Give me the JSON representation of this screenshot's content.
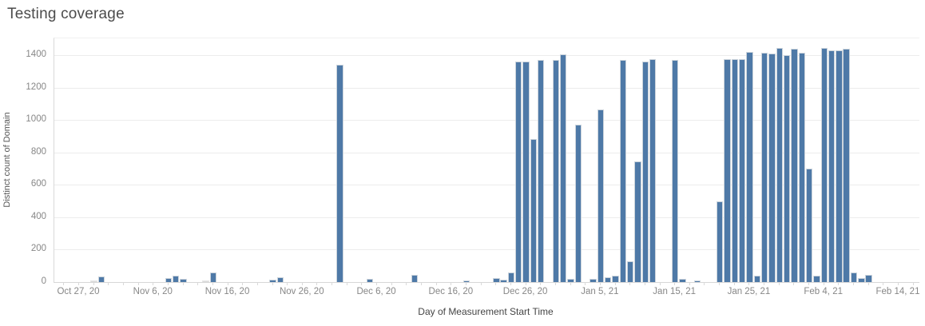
{
  "title": "Testing coverage",
  "colors": {
    "bar": "#4e79a7",
    "bar_muted": "#dcdcdc",
    "gridline": "#ececec",
    "axis_line": "#d7d7d7",
    "tick_label": "#878787",
    "axis_title": "#4a4a4a",
    "title": "#4c4c4c",
    "background": "#ffffff"
  },
  "chart_data": {
    "type": "bar",
    "title": "Testing coverage",
    "xlabel": "Day of Measurement Start Time",
    "ylabel": "Distinct count of Domain",
    "ylim": [
      0,
      1500
    ],
    "yticks": [
      0,
      200,
      400,
      600,
      800,
      1000,
      1200,
      1400
    ],
    "grid": "horizontal",
    "legend": "none",
    "x_axis": {
      "type": "date",
      "origin": "Oct 27, 20",
      "tick_interval_days": 10,
      "tick_days": [
        0,
        10,
        20,
        30,
        40,
        50,
        60,
        70,
        80,
        90,
        100,
        110
      ],
      "tick_labels": [
        "Oct 27, 20",
        "Nov 6, 20",
        "Nov 16, 20",
        "Nov 26, 20",
        "Dec 6, 20",
        "Dec 16, 20",
        "Dec 26, 20",
        "Jan 5, 21",
        "Jan 15, 21",
        "Jan 25, 21",
        "Feb 4, 21",
        "Feb 14, 21"
      ]
    },
    "points": [
      {
        "date": "Oct 29, 20",
        "day": 2,
        "value": 5,
        "muted": true
      },
      {
        "date": "Oct 30, 20",
        "day": 3,
        "value": 35
      },
      {
        "date": "Nov 8, 20",
        "day": 12,
        "value": 25
      },
      {
        "date": "Nov 9, 20",
        "day": 13,
        "value": 40
      },
      {
        "date": "Nov 10, 20",
        "day": 14,
        "value": 20
      },
      {
        "date": "Nov 13, 20",
        "day": 17,
        "value": 10,
        "muted": true
      },
      {
        "date": "Nov 14, 20",
        "day": 18,
        "value": 60
      },
      {
        "date": "Nov 22, 20",
        "day": 26,
        "value": 15
      },
      {
        "date": "Nov 23, 20",
        "day": 27,
        "value": 30
      },
      {
        "date": "Dec 1, 20",
        "day": 35,
        "value": 1340
      },
      {
        "date": "Dec 5, 20",
        "day": 39,
        "value": 20
      },
      {
        "date": "Dec 11, 20",
        "day": 45,
        "value": 45
      },
      {
        "date": "Dec 18, 20",
        "day": 52,
        "value": 10
      },
      {
        "date": "Dec 22, 20",
        "day": 56,
        "value": 25
      },
      {
        "date": "Dec 23, 20",
        "day": 57,
        "value": 15
      },
      {
        "date": "Dec 24, 20",
        "day": 58,
        "value": 60
      },
      {
        "date": "Dec 25, 20",
        "day": 59,
        "value": 1360
      },
      {
        "date": "Dec 26, 20",
        "day": 60,
        "value": 1360
      },
      {
        "date": "Dec 27, 20",
        "day": 61,
        "value": 880
      },
      {
        "date": "Dec 28, 20",
        "day": 62,
        "value": 1370
      },
      {
        "date": "Dec 30, 20",
        "day": 64,
        "value": 1370
      },
      {
        "date": "Dec 31, 20",
        "day": 65,
        "value": 1405
      },
      {
        "date": "Jan 1, 21",
        "day": 66,
        "value": 20
      },
      {
        "date": "Jan 2, 21",
        "day": 67,
        "value": 970
      },
      {
        "date": "Jan 4, 21",
        "day": 69,
        "value": 20
      },
      {
        "date": "Jan 5, 21",
        "day": 70,
        "value": 1065
      },
      {
        "date": "Jan 6, 21",
        "day": 71,
        "value": 30
      },
      {
        "date": "Jan 7, 21",
        "day": 72,
        "value": 40
      },
      {
        "date": "Jan 8, 21",
        "day": 73,
        "value": 1370
      },
      {
        "date": "Jan 9, 21",
        "day": 74,
        "value": 130
      },
      {
        "date": "Jan 10, 21",
        "day": 75,
        "value": 745
      },
      {
        "date": "Jan 11, 21",
        "day": 76,
        "value": 1360
      },
      {
        "date": "Jan 12, 21",
        "day": 77,
        "value": 1375
      },
      {
        "date": "Jan 15, 21",
        "day": 80,
        "value": 1370
      },
      {
        "date": "Jan 16, 21",
        "day": 81,
        "value": 20
      },
      {
        "date": "Jan 18, 21",
        "day": 83,
        "value": 10
      },
      {
        "date": "Jan 21, 21",
        "day": 86,
        "value": 500
      },
      {
        "date": "Jan 22, 21",
        "day": 87,
        "value": 1375
      },
      {
        "date": "Jan 23, 21",
        "day": 88,
        "value": 1375
      },
      {
        "date": "Jan 24, 21",
        "day": 89,
        "value": 1375
      },
      {
        "date": "Jan 25, 21",
        "day": 90,
        "value": 1420
      },
      {
        "date": "Jan 26, 21",
        "day": 91,
        "value": 40
      },
      {
        "date": "Jan 27, 21",
        "day": 92,
        "value": 1415
      },
      {
        "date": "Jan 28, 21",
        "day": 93,
        "value": 1410
      },
      {
        "date": "Jan 29, 21",
        "day": 94,
        "value": 1445
      },
      {
        "date": "Jan 30, 21",
        "day": 95,
        "value": 1400
      },
      {
        "date": "Jan 31, 21",
        "day": 96,
        "value": 1440
      },
      {
        "date": "Feb 1, 21",
        "day": 97,
        "value": 1415
      },
      {
        "date": "Feb 2, 21",
        "day": 98,
        "value": 700
      },
      {
        "date": "Feb 3, 21",
        "day": 99,
        "value": 40
      },
      {
        "date": "Feb 4, 21",
        "day": 100,
        "value": 1445
      },
      {
        "date": "Feb 5, 21",
        "day": 101,
        "value": 1430
      },
      {
        "date": "Feb 6, 21",
        "day": 102,
        "value": 1430
      },
      {
        "date": "Feb 7, 21",
        "day": 103,
        "value": 1440
      },
      {
        "date": "Feb 8, 21",
        "day": 104,
        "value": 60
      },
      {
        "date": "Feb 9, 21",
        "day": 105,
        "value": 25
      },
      {
        "date": "Feb 10, 21",
        "day": 106,
        "value": 45
      }
    ]
  }
}
